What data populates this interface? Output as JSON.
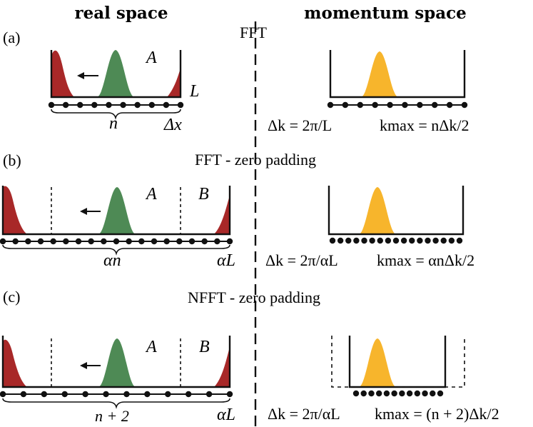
{
  "headers": {
    "left": "real space",
    "right": "momentum space"
  },
  "colors": {
    "red": "#A82828",
    "green": "#4E8A55",
    "orange": "#F7B52C",
    "line": "#111111"
  },
  "panels": {
    "a": {
      "label": "(a)",
      "method": "FFT",
      "region_label_A": "A",
      "label_L": "L",
      "label_n": "n",
      "label_dx": "Δx",
      "eq_dk": "Δk = 2π/L",
      "eq_kmax": "kmax = nΔk/2",
      "grid_points_real": 10,
      "grid_points_momentum": 10
    },
    "b": {
      "label": "(b)",
      "method": "FFT - zero padding",
      "region_label_A": "A",
      "region_label_B": "B",
      "label_n": "αn",
      "label_L": "αL",
      "eq_dk": "Δk = 2π/αL",
      "eq_kmax": "kmax = αnΔk/2",
      "grid_points_real": 19,
      "grid_points_momentum": 17
    },
    "c": {
      "label": "(c)",
      "method": "NFFT - zero padding",
      "region_label_A": "A",
      "region_label_B": "B",
      "label_n": "n + 2",
      "label_L": "αL",
      "eq_dk": "Δk = 2π/αL",
      "eq_kmax": "kmax = (n + 2)Δk/2",
      "grid_points_real": 12,
      "grid_points_momentum": 12
    }
  }
}
